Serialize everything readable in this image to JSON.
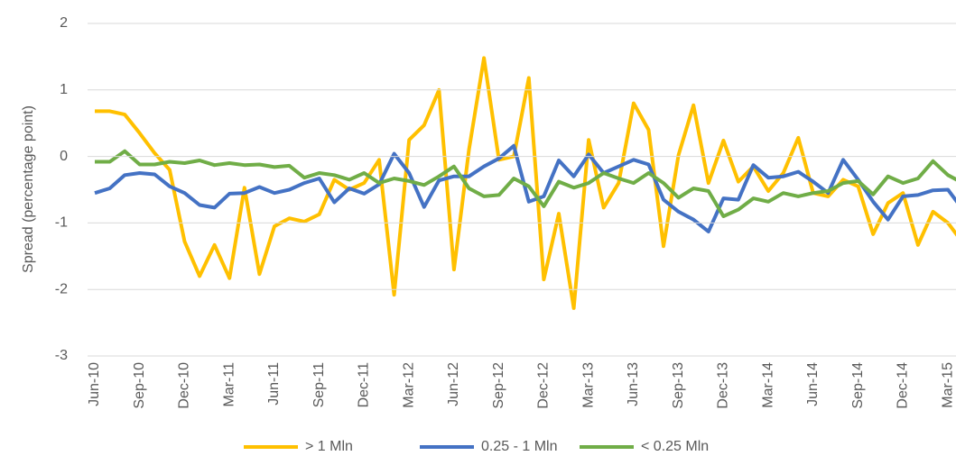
{
  "chart_data": {
    "type": "line",
    "y_label": "Spread (percentage point)",
    "categories": [
      "Jun-10",
      null,
      null,
      "Sep-10",
      null,
      null,
      "Dec-10",
      null,
      null,
      "Mar-11",
      null,
      null,
      "Jun-11",
      null,
      null,
      "Sep-11",
      null,
      null,
      "Dec-11",
      null,
      null,
      "Mar-12",
      null,
      null,
      "Jun-12",
      null,
      null,
      "Sep-12",
      null,
      null,
      "Dec-12",
      null,
      null,
      "Mar-13",
      null,
      null,
      "Jun-13",
      null,
      null,
      "Sep-13",
      null,
      null,
      "Dec-13",
      null,
      null,
      "Mar-14",
      null,
      null,
      "Jun-14",
      null,
      null,
      "Sep-14",
      null,
      null,
      "Dec-14",
      null,
      null,
      "Mar-15",
      null
    ],
    "ylim": [
      -3,
      2
    ],
    "yticks": [
      -3,
      -2,
      -1,
      0,
      1,
      2
    ],
    "grid": true,
    "legend": "bottom",
    "series": [
      {
        "name": "> 1 Mln",
        "color": "#FFC000",
        "values": [
          0.68,
          0.68,
          0.63,
          0.35,
          0.05,
          -0.2,
          -1.28,
          -1.8,
          -1.33,
          -1.83,
          -0.47,
          -1.77,
          -1.05,
          -0.93,
          -0.98,
          -0.87,
          -0.35,
          -0.5,
          -0.4,
          -0.05,
          -2.08,
          0.25,
          0.47,
          1.0,
          -1.7,
          0.1,
          1.48,
          -0.05,
          0.0,
          1.18,
          -1.85,
          -0.86,
          -2.28,
          0.25,
          -0.77,
          -0.4,
          0.8,
          0.4,
          -1.35,
          0.02,
          0.77,
          -0.4,
          0.24,
          -0.38,
          -0.15,
          -0.52,
          -0.25,
          0.28,
          -0.55,
          -0.6,
          -0.35,
          -0.45,
          -1.17,
          -0.7,
          -0.55,
          -1.33,
          -0.83,
          -1.0,
          -1.3
        ]
      },
      {
        "name": "0.25 - 1 Mln",
        "color": "#4472C4",
        "values": [
          -0.55,
          -0.48,
          -0.28,
          -0.25,
          -0.27,
          -0.45,
          -0.55,
          -0.73,
          -0.77,
          -0.56,
          -0.55,
          -0.46,
          -0.55,
          -0.5,
          -0.4,
          -0.33,
          -0.69,
          -0.48,
          -0.56,
          -0.42,
          0.04,
          -0.25,
          -0.76,
          -0.36,
          -0.3,
          -0.3,
          -0.15,
          -0.03,
          0.16,
          -0.68,
          -0.6,
          -0.06,
          -0.3,
          0.03,
          -0.25,
          -0.15,
          -0.05,
          -0.12,
          -0.65,
          -0.83,
          -0.95,
          -1.13,
          -0.63,
          -0.65,
          -0.13,
          -0.32,
          -0.3,
          -0.23,
          -0.38,
          -0.55,
          -0.05,
          -0.35,
          -0.68,
          -0.95,
          -0.6,
          -0.58,
          -0.51,
          -0.5,
          -0.8
        ]
      },
      {
        "name": "< 0.25 Mln",
        "color": "#70AD47",
        "values": [
          -0.08,
          -0.08,
          0.08,
          -0.12,
          -0.12,
          -0.08,
          -0.1,
          -0.06,
          -0.13,
          -0.1,
          -0.13,
          -0.12,
          -0.16,
          -0.14,
          -0.32,
          -0.25,
          -0.28,
          -0.35,
          -0.25,
          -0.4,
          -0.33,
          -0.37,
          -0.43,
          -0.3,
          -0.15,
          -0.48,
          -0.6,
          -0.58,
          -0.33,
          -0.45,
          -0.75,
          -0.38,
          -0.47,
          -0.4,
          -0.25,
          -0.33,
          -0.4,
          -0.25,
          -0.4,
          -0.62,
          -0.48,
          -0.52,
          -0.9,
          -0.8,
          -0.63,
          -0.68,
          -0.55,
          -0.6,
          -0.55,
          -0.52,
          -0.4,
          -0.37,
          -0.57,
          -0.3,
          -0.4,
          -0.33,
          -0.07,
          -0.28,
          -0.4
        ]
      }
    ]
  }
}
